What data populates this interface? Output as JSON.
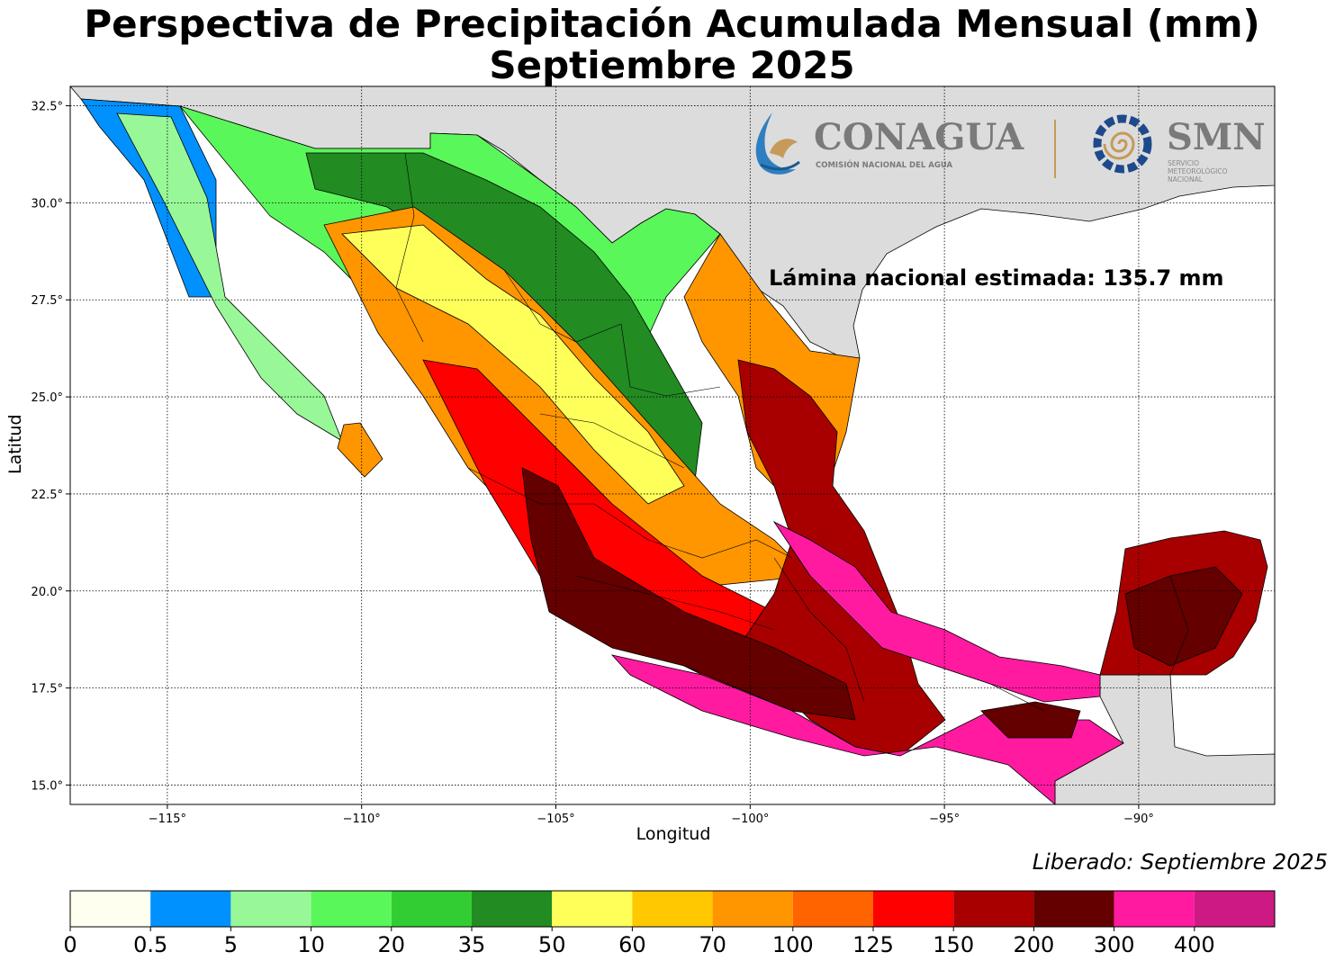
{
  "title": "Perspectiva de Precipitación Acumulada Mensual (mm)",
  "subtitle": "Septiembre 2025",
  "xlabel": "Longitud",
  "ylabel": "Latitud",
  "lamina_label": "Lámina nacional estimada: 135.7 mm",
  "released_label": "Liberado: Septiembre 2025",
  "logos": {
    "conagua_name": "CONAGUA",
    "conagua_sub": "COMISIÓN NACIONAL DEL AGUA",
    "smn_name": "SMN",
    "smn_sub": [
      "SERVICIO",
      "METEOROLÓGICO",
      "NACIONAL"
    ]
  },
  "map": {
    "lon_range": [
      -117.5,
      -86.5
    ],
    "lat_range": [
      14.5,
      33.0
    ],
    "lon_ticks": [
      -115,
      -110,
      -105,
      -100,
      -95,
      -90
    ],
    "lon_tick_labels": [
      "−115°",
      "−110°",
      "−105°",
      "−100°",
      "−95°",
      "−90°"
    ],
    "lat_ticks": [
      15.0,
      17.5,
      20.0,
      22.5,
      25.0,
      27.5,
      30.0,
      32.5
    ],
    "lat_tick_labels": [
      "15.0°",
      "17.5°",
      "20.0°",
      "22.5°",
      "25.0°",
      "27.5°",
      "30.0°",
      "32.5°"
    ],
    "grid": "dotted",
    "land_outside_color": "#dcdcdc",
    "water_color": "#ffffff"
  },
  "colorbar": {
    "tick_labels": [
      "0",
      "0.5",
      "5",
      "10",
      "20",
      "35",
      "50",
      "60",
      "70",
      "100",
      "125",
      "150",
      "200",
      "300",
      "400"
    ],
    "colors": [
      "#fffff0",
      "#0091ff",
      "#98f898",
      "#5af75a",
      "#32cd32",
      "#228b22",
      "#ffff5a",
      "#ffc800",
      "#ff9600",
      "#ff6400",
      "#ff0000",
      "#a80000",
      "#640000",
      "#ff1aa0",
      "#cc1a82"
    ]
  }
}
